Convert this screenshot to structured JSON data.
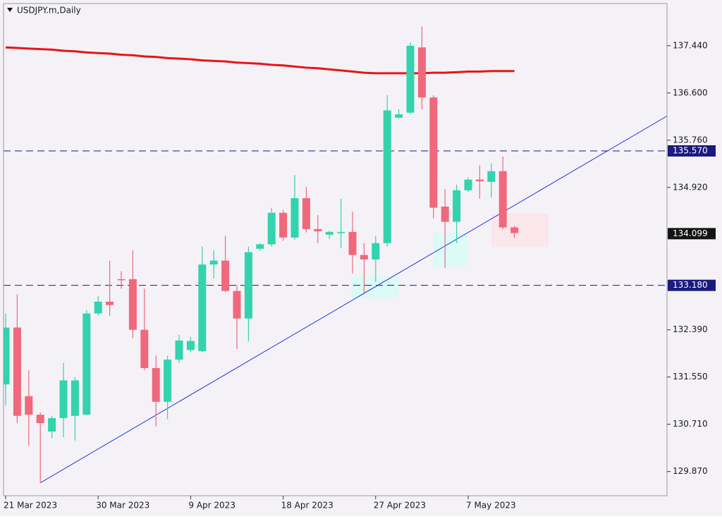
{
  "chart_data": {
    "type": "candlestick",
    "title": "USDJPY.m,Daily",
    "categories": [
      "21 Mar 2023",
      null,
      null,
      null,
      null,
      null,
      null,
      null,
      "30 Mar 2023",
      null,
      null,
      null,
      null,
      null,
      null,
      null,
      "9 Apr 2023",
      null,
      null,
      null,
      null,
      null,
      null,
      null,
      "18 Apr 2023",
      null,
      null,
      null,
      null,
      null,
      null,
      null,
      "27 Apr 2023",
      null,
      null,
      null,
      null,
      null,
      null,
      null,
      "7 May 2023",
      null,
      null,
      null,
      null
    ],
    "open": [
      131.42,
      132.43,
      131.21,
      130.88,
      130.58,
      130.82,
      130.86,
      130.88,
      132.68,
      132.89,
      133.29,
      133.29,
      132.39,
      131.71,
      131.11,
      131.86,
      132.03,
      132.01,
      133.55,
      133.62,
      133.08,
      132.59,
      133.83,
      133.91,
      134.47,
      134.03,
      134.73,
      134.18,
      134.08,
      134.11,
      134.13,
      133.72,
      133.64,
      133.93,
      136.16,
      136.25,
      137.41,
      136.52,
      134.58,
      134.31,
      134.87,
      135.06,
      135.02,
      135.21,
      134.21
    ],
    "high": [
      132.68,
      133.02,
      131.67,
      130.92,
      130.86,
      131.8,
      131.55,
      132.74,
      132.99,
      133.62,
      133.43,
      133.8,
      133.12,
      131.93,
      131.93,
      132.3,
      132.26,
      133.87,
      133.8,
      134.06,
      133.18,
      133.87,
      133.93,
      134.56,
      134.52,
      135.14,
      134.93,
      134.43,
      134.15,
      134.72,
      134.49,
      133.93,
      134.06,
      136.56,
      136.31,
      137.5,
      137.78,
      136.56,
      134.89,
      134.97,
      135.1,
      135.31,
      135.35,
      135.47,
      134.24
    ],
    "low": [
      131.05,
      130.73,
      130.33,
      129.67,
      130.46,
      130.48,
      130.42,
      130.88,
      132.64,
      132.64,
      133.12,
      132.24,
      131.67,
      130.67,
      130.8,
      131.8,
      131.99,
      131.99,
      133.3,
      133.06,
      132.05,
      132.18,
      133.79,
      133.87,
      133.97,
      133.99,
      134.12,
      133.93,
      134.0,
      133.84,
      133.39,
      133.02,
      133.24,
      133.87,
      136.15,
      136.22,
      136.31,
      134.37,
      133.49,
      133.93,
      134.84,
      134.72,
      134.74,
      134.18,
      134.02
    ],
    "close": [
      132.43,
      130.86,
      130.88,
      130.73,
      130.82,
      131.49,
      131.49,
      132.68,
      132.89,
      132.83,
      133.28,
      132.39,
      131.71,
      131.11,
      131.86,
      132.2,
      132.19,
      133.55,
      133.62,
      133.08,
      132.59,
      133.77,
      133.91,
      134.47,
      134.03,
      134.73,
      134.18,
      134.14,
      134.13,
      134.13,
      133.72,
      133.64,
      133.93,
      136.29,
      136.22,
      137.44,
      136.52,
      134.56,
      134.31,
      134.87,
      135.06,
      135.03,
      135.21,
      134.21,
      134.11
    ],
    "up_color": "#32d3ad",
    "down_color": "#f0687c",
    "ma": {
      "color": "#e8141a",
      "values": [
        137.41,
        137.4,
        137.39,
        137.38,
        137.37,
        137.35,
        137.34,
        137.32,
        137.31,
        137.3,
        137.28,
        137.27,
        137.25,
        137.24,
        137.22,
        137.21,
        137.2,
        137.18,
        137.17,
        137.16,
        137.14,
        137.13,
        137.12,
        137.1,
        137.09,
        137.07,
        137.05,
        137.04,
        137.02,
        137.0,
        136.98,
        136.96,
        136.95,
        136.95,
        136.95,
        136.95,
        136.95,
        136.96,
        136.96,
        136.97,
        136.98,
        136.98,
        136.99,
        136.99,
        136.99
      ]
    },
    "trendline": {
      "color": "#2233dd",
      "x": [
        3,
        57.2
      ],
      "y": [
        129.67,
        136.19
      ]
    },
    "levels": [
      {
        "value": 135.57,
        "label": "135.570"
      },
      {
        "value": 133.18,
        "label": "133.180"
      }
    ],
    "level_color": "#1a1a80",
    "current_price": 134.099,
    "ylim": [
      129.44,
      138.19
    ],
    "yticks": [
      {
        "value": 137.44,
        "label": "137.440"
      },
      {
        "value": 136.6,
        "label": "136.600"
      },
      {
        "value": 135.76,
        "label": "135.760"
      },
      {
        "value": 134.92,
        "label": "134.920"
      },
      {
        "value": 132.39,
        "label": "132.390"
      },
      {
        "value": 131.55,
        "label": "131.550"
      },
      {
        "value": 130.71,
        "label": "130.710"
      },
      {
        "value": 129.87,
        "label": "129.870"
      }
    ]
  }
}
